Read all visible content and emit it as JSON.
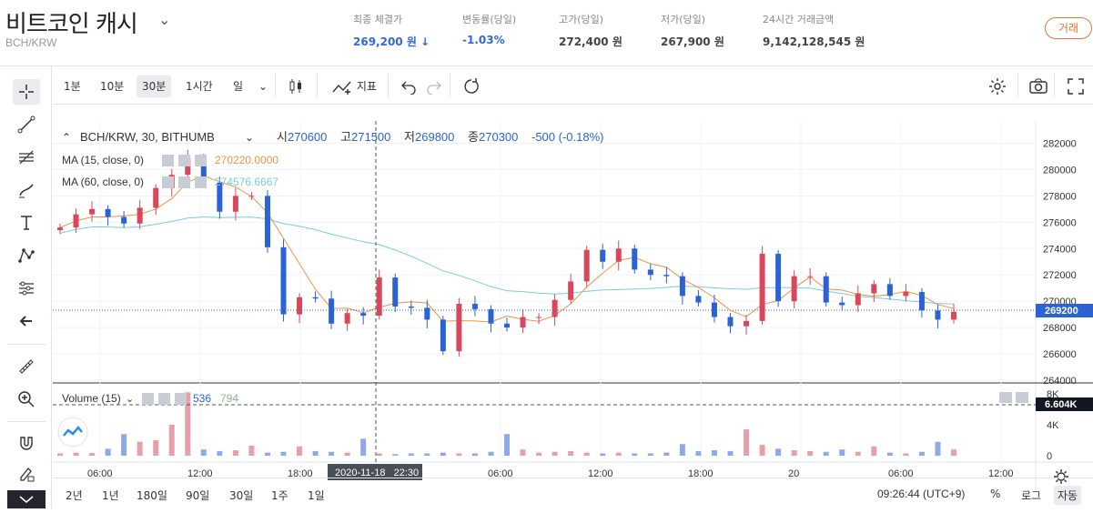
{
  "header": {
    "coin_name": "비트코인 캐시",
    "pair": "BCH/KRW",
    "stats": [
      {
        "label": "최종 체결가",
        "value": "269,200 원 ↓",
        "color": "#3269d8"
      },
      {
        "label": "변동률(당일)",
        "value": "-1.03%",
        "color": "#3269d8"
      },
      {
        "label": "고가(당일)",
        "value": "272,400 원",
        "color": "#444444"
      },
      {
        "label": "저가(당일)",
        "value": "267,900 원",
        "color": "#444444"
      },
      {
        "label": "24시간 거래금액",
        "value": "9,142,128,545 원",
        "color": "#444444"
      }
    ],
    "trade_button": "거래"
  },
  "toolbar": {
    "intervals": [
      "1분",
      "10분",
      "30분",
      "1시간",
      "일"
    ],
    "active_interval": "30분",
    "indicators_label": "지표"
  },
  "legend": {
    "symbol": "BCH/KRW, 30, BITHUMB",
    "open_label": "시",
    "open": "270600",
    "high_label": "고",
    "high": "271500",
    "low_label": "저",
    "low": "269800",
    "close_label": "종",
    "close": "270300",
    "change": "-500 (-0.18%)",
    "ma15_label": "MA (15, close, 0)",
    "ma15_value": "270220.0000",
    "ma60_label": "MA (60, close, 0)",
    "ma60_value": "274576.6667",
    "volume_label": "Volume (15)",
    "volume_value": "536",
    "volume_value2": "794"
  },
  "price_axis": {
    "ticks": [
      "282000",
      "280000",
      "278000",
      "276000",
      "274000",
      "272000",
      "270000",
      "268000",
      "266000",
      "264000"
    ],
    "last_price": "269200",
    "volume_ticks": [
      "8K",
      "4K",
      "0"
    ],
    "volume_last": "6.604K"
  },
  "time_axis": {
    "ticks": [
      "06:00",
      "12:00",
      "18:00",
      "06:00",
      "12:00",
      "18:00",
      "20",
      "06:00",
      "12:00"
    ],
    "crosshair_label": "2020-11-18   22:30"
  },
  "bottom_bar": {
    "ranges": [
      "2년",
      "1년",
      "180일",
      "90일",
      "30일",
      "1주",
      "1일"
    ],
    "clock": "09:26:44 (UTC+9)",
    "percent": "%",
    "log": "로그",
    "auto": "자동"
  },
  "colors": {
    "up": "#d9475a",
    "down": "#2b63d4",
    "ma15": "#f09247",
    "ma60": "#76cfd9",
    "accent": "#e8743b"
  },
  "chart_data": {
    "type": "candlestick",
    "ohlc_approx_close": [
      275600,
      276600,
      277000,
      276400,
      275900,
      277100,
      278600,
      279600,
      280900,
      279000,
      276800,
      278000,
      278000,
      274100,
      269000,
      270300,
      270200,
      268300,
      269100,
      268900,
      271800,
      269600,
      269500,
      268600,
      266200,
      269800,
      269400,
      268300,
      268000,
      268800,
      268800,
      270100,
      271500,
      273900,
      273000,
      274000,
      272400,
      272000,
      271900,
      270400,
      269900,
      268800,
      268100,
      268500,
      273600,
      270000,
      271900,
      271900,
      269900,
      269700,
      270600,
      271300,
      270400,
      270700,
      269300,
      268600,
      269200
    ],
    "volume_approx": [
      300,
      400,
      350,
      900,
      2800,
      1800,
      2000,
      4000,
      8200,
      800,
      600,
      700,
      1300,
      400,
      500,
      1200,
      600,
      500,
      400,
      2200,
      300,
      200,
      300,
      300,
      400,
      300,
      300,
      500,
      2800,
      800,
      400,
      500,
      600,
      400,
      300,
      400,
      300,
      300,
      400,
      1500,
      600,
      700,
      600,
      3400,
      1400,
      900,
      700,
      600,
      500,
      800,
      500,
      1200,
      400,
      300,
      500,
      1800,
      800
    ]
  }
}
